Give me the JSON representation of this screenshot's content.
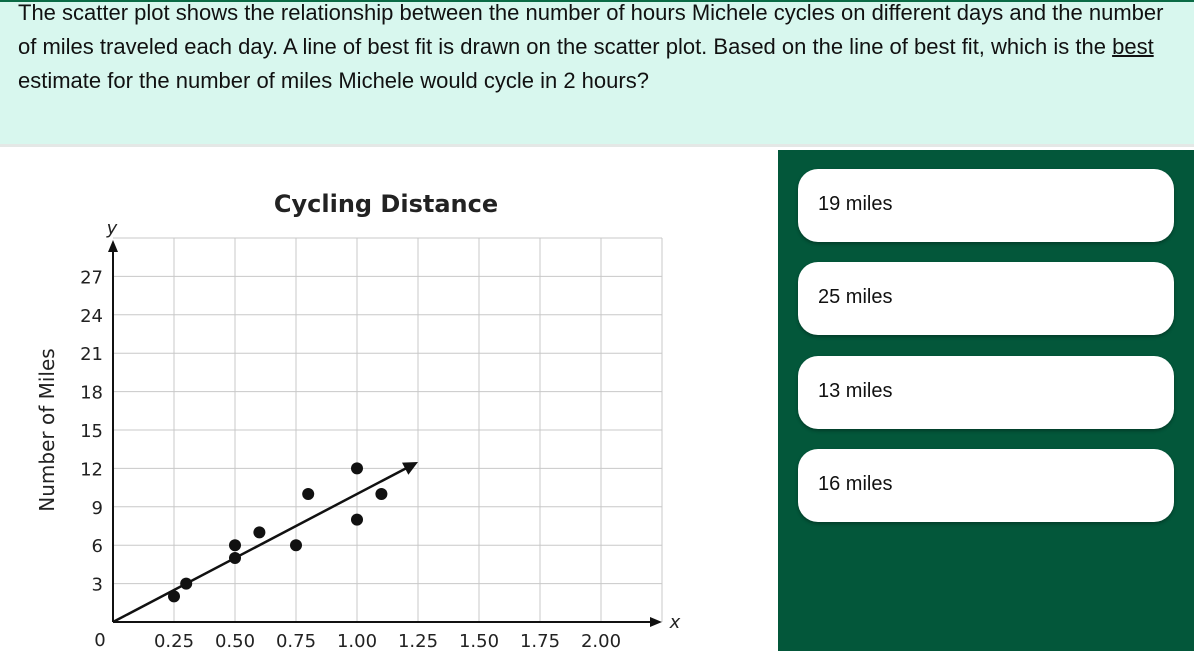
{
  "question": {
    "text_before": "The scatter plot shows the relationship between the number of hours Michele cycles on different days and the number of miles traveled each day. A line of best fit is drawn on the scatter plot. Based on the line of best fit, which is the ",
    "emphasis": "best",
    "text_after": " estimate for the number of miles Michele would cycle in 2 hours?"
  },
  "answers": [
    {
      "label": "19 miles"
    },
    {
      "label": "25 miles"
    },
    {
      "label": "13 miles"
    },
    {
      "label": "16 miles"
    }
  ],
  "colors": {
    "question_bg": "#d8f7ee",
    "panel_bg": "#03573a",
    "option_bg": "#ffffff"
  },
  "chart_data": {
    "type": "scatter",
    "title": "Cycling Distance",
    "xlabel": "x",
    "ylabel": "Number of Miles",
    "y_axis_letter": "y",
    "origin_label": "0",
    "xlim": [
      0,
      2.25
    ],
    "ylim": [
      0,
      30
    ],
    "grid": true,
    "x_ticks": [
      0.25,
      0.5,
      0.75,
      1.0,
      1.25,
      1.5,
      1.75,
      2.0
    ],
    "x_tick_labels": [
      "0.25",
      "0.50",
      "0.75",
      "1.00",
      "1.25",
      "1.50",
      "1.75",
      "2.00"
    ],
    "y_ticks": [
      3,
      6,
      9,
      12,
      15,
      18,
      21,
      24,
      27
    ],
    "y_tick_labels": [
      "3",
      "6",
      "9",
      "12",
      "15",
      "18",
      "21",
      "24",
      "27"
    ],
    "points": [
      {
        "x": 0.25,
        "y": 2
      },
      {
        "x": 0.3,
        "y": 3
      },
      {
        "x": 0.5,
        "y": 5
      },
      {
        "x": 0.5,
        "y": 6
      },
      {
        "x": 0.6,
        "y": 7
      },
      {
        "x": 0.75,
        "y": 6
      },
      {
        "x": 0.8,
        "y": 10
      },
      {
        "x": 1.0,
        "y": 12
      },
      {
        "x": 1.0,
        "y": 8
      },
      {
        "x": 1.1,
        "y": 10
      }
    ],
    "best_fit_line": {
      "from": {
        "x": 0,
        "y": 0
      },
      "to": {
        "x": 1.25,
        "y": 12.5
      }
    }
  }
}
